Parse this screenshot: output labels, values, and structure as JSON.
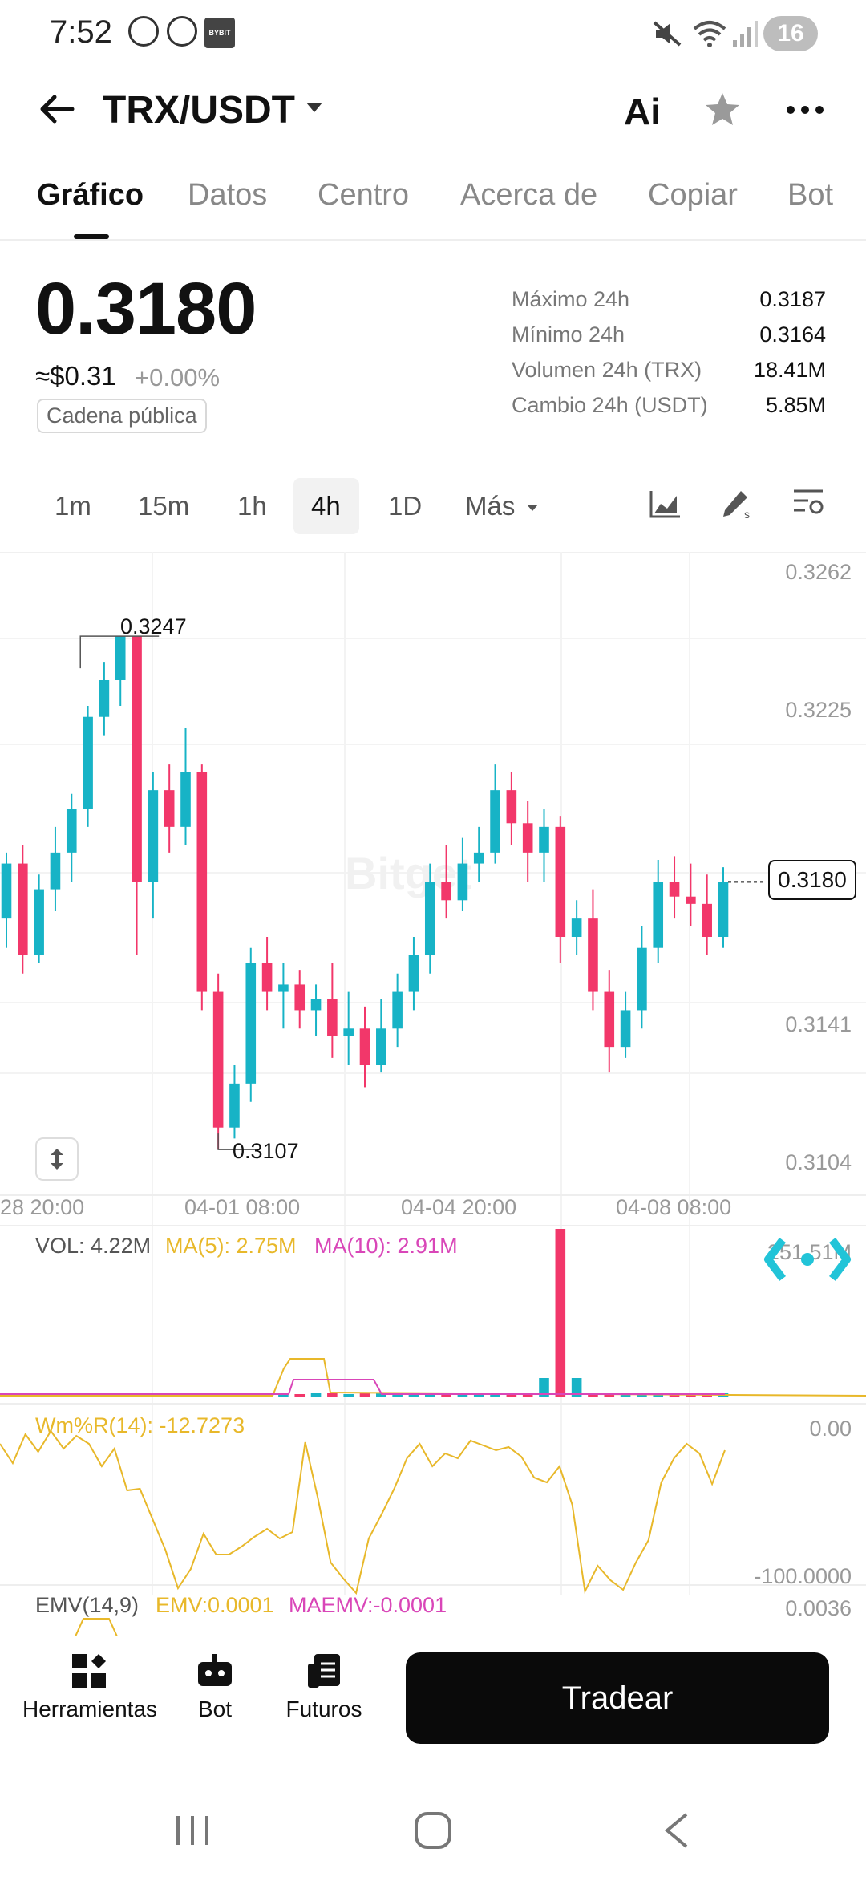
{
  "status_bar": {
    "time": "7:52",
    "battery": "16",
    "app_badge": "BYBIT"
  },
  "header": {
    "pair": "TRX/USDT",
    "ai_label": "Ai"
  },
  "tabs": [
    "Gráfico",
    "Datos",
    "Centro",
    "Acerca de",
    "Copiar",
    "Bot"
  ],
  "active_tab": "Gráfico",
  "price": {
    "last": "0.3180",
    "approx_usd": "≈$0.31",
    "change_pct": "+0.00%",
    "tag": "Cadena pública"
  },
  "stats": [
    {
      "label": "Máximo 24h",
      "value": "0.3187"
    },
    {
      "label": "Mínimo 24h",
      "value": "0.3164"
    },
    {
      "label": "Volumen 24h (TRX)",
      "value": "18.41M"
    },
    {
      "label": "Cambio 24h (USDT)",
      "value": "5.85M"
    }
  ],
  "intervals": [
    "1m",
    "15m",
    "1h",
    "4h",
    "1D",
    "Más"
  ],
  "active_interval": "4h",
  "chart": {
    "y_ticks": [
      "0.3262",
      "0.3225",
      "0.3141",
      "0.3104"
    ],
    "x_ticks": [
      "28 20:00",
      "04-01 08:00",
      "04-04 20:00",
      "04-08 08:00"
    ],
    "high_marker": "0.3247",
    "low_marker": "0.3107",
    "current_price": "0.3180",
    "watermark": "Bitget"
  },
  "volume": {
    "vol": "VOL: 4.22M",
    "ma5": "MA(5): 2.75M",
    "ma10": "MA(10): 2.91M",
    "axis_max": "251.51M"
  },
  "wmr": {
    "label": "Wm%R(14): -12.7273",
    "top": "0.00",
    "bottom": "-100.0000"
  },
  "emv": {
    "label": "EMV(14,9)",
    "emv": "EMV:0.0001",
    "maemv": "MAEMV:-0.0001",
    "axis": "0.0036"
  },
  "bottom_nav": {
    "tools": "Herramientas",
    "bot": "Bot",
    "futures": "Futuros",
    "trade": "Tradear"
  },
  "colors": {
    "up": "#17b3c6",
    "down": "#f2376a",
    "ma5": "#e8b82a",
    "ma10": "#d946b8"
  },
  "chart_data": {
    "type": "candlestick",
    "candles": [
      {
        "o": 0.317,
        "c": 0.3185,
        "h": 0.3188,
        "l": 0.3162
      },
      {
        "o": 0.3185,
        "c": 0.316,
        "h": 0.319,
        "l": 0.3155
      },
      {
        "o": 0.316,
        "c": 0.3178,
        "h": 0.3182,
        "l": 0.3158
      },
      {
        "o": 0.3178,
        "c": 0.3188,
        "h": 0.3195,
        "l": 0.3172
      },
      {
        "o": 0.3188,
        "c": 0.32,
        "h": 0.3204,
        "l": 0.318
      },
      {
        "o": 0.32,
        "c": 0.3225,
        "h": 0.3228,
        "l": 0.3195
      },
      {
        "o": 0.3225,
        "c": 0.3235,
        "h": 0.324,
        "l": 0.322
      },
      {
        "o": 0.3235,
        "c": 0.3247,
        "h": 0.3247,
        "l": 0.3228
      },
      {
        "o": 0.3247,
        "c": 0.318,
        "h": 0.3247,
        "l": 0.316
      },
      {
        "o": 0.318,
        "c": 0.3205,
        "h": 0.321,
        "l": 0.317
      },
      {
        "o": 0.3205,
        "c": 0.3195,
        "h": 0.3212,
        "l": 0.3188
      },
      {
        "o": 0.3195,
        "c": 0.321,
        "h": 0.3222,
        "l": 0.319
      },
      {
        "o": 0.321,
        "c": 0.315,
        "h": 0.3212,
        "l": 0.3145
      },
      {
        "o": 0.315,
        "c": 0.3113,
        "h": 0.3155,
        "l": 0.3107
      },
      {
        "o": 0.3113,
        "c": 0.3125,
        "h": 0.313,
        "l": 0.311
      },
      {
        "o": 0.3125,
        "c": 0.3158,
        "h": 0.3162,
        "l": 0.312
      },
      {
        "o": 0.3158,
        "c": 0.315,
        "h": 0.3165,
        "l": 0.3145
      },
      {
        "o": 0.315,
        "c": 0.3152,
        "h": 0.3158,
        "l": 0.314
      },
      {
        "o": 0.3152,
        "c": 0.3145,
        "h": 0.3156,
        "l": 0.314
      },
      {
        "o": 0.3145,
        "c": 0.3148,
        "h": 0.3152,
        "l": 0.3138
      },
      {
        "o": 0.3148,
        "c": 0.3138,
        "h": 0.3158,
        "l": 0.3132
      },
      {
        "o": 0.3138,
        "c": 0.314,
        "h": 0.315,
        "l": 0.313
      },
      {
        "o": 0.314,
        "c": 0.313,
        "h": 0.3146,
        "l": 0.3124
      },
      {
        "o": 0.313,
        "c": 0.314,
        "h": 0.3148,
        "l": 0.3128
      },
      {
        "o": 0.314,
        "c": 0.315,
        "h": 0.3155,
        "l": 0.3135
      },
      {
        "o": 0.315,
        "c": 0.316,
        "h": 0.3165,
        "l": 0.3145
      },
      {
        "o": 0.316,
        "c": 0.318,
        "h": 0.3185,
        "l": 0.3155
      },
      {
        "o": 0.318,
        "c": 0.3175,
        "h": 0.319,
        "l": 0.317
      },
      {
        "o": 0.3175,
        "c": 0.3185,
        "h": 0.3192,
        "l": 0.3172
      },
      {
        "o": 0.3185,
        "c": 0.3188,
        "h": 0.3195,
        "l": 0.318
      },
      {
        "o": 0.3188,
        "c": 0.3205,
        "h": 0.3212,
        "l": 0.3185
      },
      {
        "o": 0.3205,
        "c": 0.3196,
        "h": 0.321,
        "l": 0.319
      },
      {
        "o": 0.3196,
        "c": 0.3188,
        "h": 0.3202,
        "l": 0.318
      },
      {
        "o": 0.3188,
        "c": 0.3195,
        "h": 0.32,
        "l": 0.318
      },
      {
        "o": 0.3195,
        "c": 0.3165,
        "h": 0.3198,
        "l": 0.3158
      },
      {
        "o": 0.3165,
        "c": 0.317,
        "h": 0.3175,
        "l": 0.316
      },
      {
        "o": 0.317,
        "c": 0.315,
        "h": 0.3178,
        "l": 0.3145
      },
      {
        "o": 0.315,
        "c": 0.3135,
        "h": 0.3156,
        "l": 0.3128
      },
      {
        "o": 0.3135,
        "c": 0.3145,
        "h": 0.315,
        "l": 0.3132
      },
      {
        "o": 0.3145,
        "c": 0.3162,
        "h": 0.3168,
        "l": 0.314
      },
      {
        "o": 0.3162,
        "c": 0.318,
        "h": 0.3186,
        "l": 0.3158
      },
      {
        "o": 0.318,
        "c": 0.3176,
        "h": 0.3187,
        "l": 0.317
      },
      {
        "o": 0.3176,
        "c": 0.3174,
        "h": 0.3185,
        "l": 0.3168
      },
      {
        "o": 0.3174,
        "c": 0.3165,
        "h": 0.3182,
        "l": 0.316
      },
      {
        "o": 0.3165,
        "c": 0.318,
        "h": 0.3184,
        "l": 0.3162
      }
    ],
    "ylim": [
      0.3095,
      0.327
    ],
    "volume_ma5": 2.75,
    "volume_ma10": 2.91
  }
}
